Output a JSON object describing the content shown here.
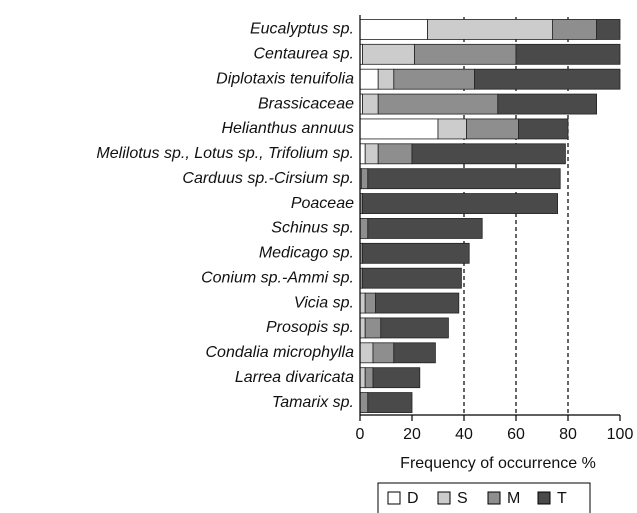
{
  "chart_data": {
    "type": "stacked_barh",
    "xlabel": "Frequency of occurrence %",
    "categories": [
      "Eucalyptus sp.",
      "Centaurea sp.",
      "Diplotaxis tenuifolia",
      "Brassicaceae",
      "Helianthus annuus",
      "Melilotus sp., Lotus sp., Trifolium sp.",
      "Carduus sp.-Cirsium sp.",
      "Poaceae",
      "Schinus sp.",
      "Medicago sp.",
      "Conium sp.-Ammi sp.",
      "Vicia sp.",
      "Prosopis sp.",
      "Condalia microphylla",
      "Larrea divaricata",
      "Tamarix sp."
    ],
    "series": [
      {
        "name": "D",
        "color": "#ffffff",
        "values": [
          26,
          1,
          7,
          1,
          30,
          2,
          0,
          0,
          0,
          0,
          0,
          0,
          0,
          0,
          0,
          0
        ]
      },
      {
        "name": "S",
        "color": "#cccccc",
        "values": [
          48,
          20,
          6,
          6,
          11,
          5,
          0.5,
          0,
          0,
          0,
          0,
          2,
          2,
          5,
          2,
          0
        ]
      },
      {
        "name": "M",
        "color": "#8e8e8e",
        "values": [
          17,
          39,
          31,
          46,
          20,
          13,
          2.5,
          1,
          3,
          1,
          1,
          4,
          6,
          8,
          3,
          3
        ]
      },
      {
        "name": "T",
        "color": "#4a4a4a",
        "values": [
          9,
          40,
          56,
          38,
          19,
          59,
          74,
          75,
          44,
          41,
          38,
          32,
          26,
          16,
          18,
          17
        ]
      }
    ],
    "xlim": [
      0,
      100
    ],
    "xticks": [
      0,
      20,
      40,
      60,
      80,
      100
    ],
    "dashed_grid": [
      40,
      60,
      80
    ],
    "legend": "bottom"
  }
}
